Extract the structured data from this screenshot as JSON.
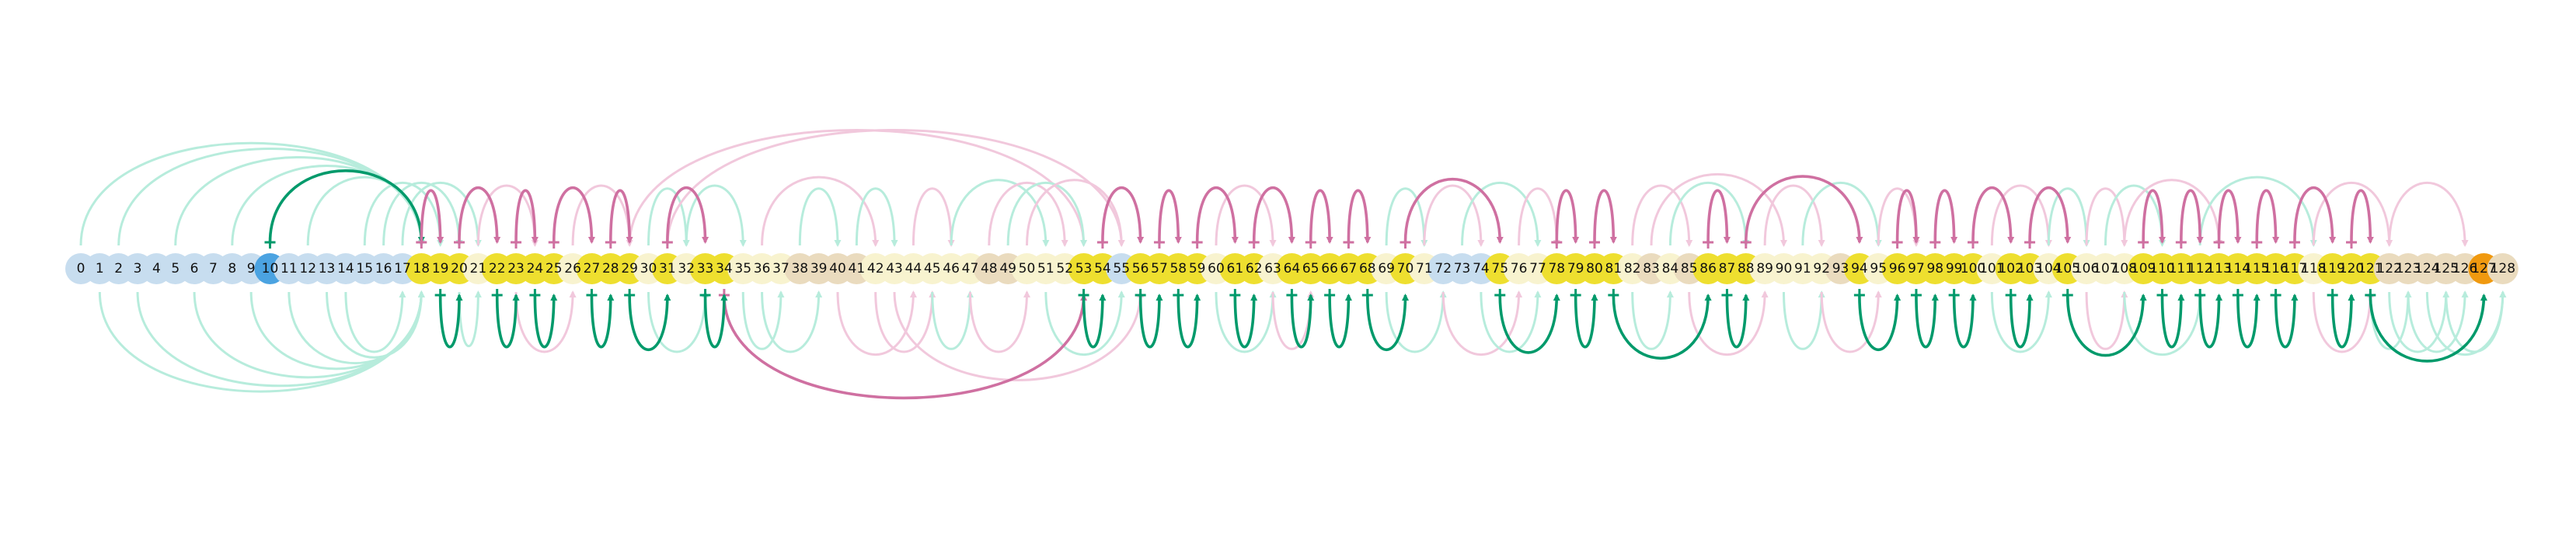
{
  "node_labels": [
    "0",
    "1",
    "2",
    "3",
    "4",
    "5",
    "6",
    "7",
    "8",
    "9",
    "10",
    "11",
    "12",
    "13",
    "14",
    "15",
    "16",
    "17",
    "18",
    "19",
    "20",
    "21",
    "22",
    "23",
    "24",
    "25",
    "26",
    "27",
    "28",
    "29",
    "30",
    "31",
    "32",
    "33",
    "34",
    "35",
    "36",
    "37",
    "38",
    "39",
    "40",
    "41",
    "42",
    "43",
    "44",
    "45",
    "46",
    "47",
    "48",
    "49",
    "50",
    "51",
    "52",
    "53",
    "54",
    "55",
    "56",
    "57",
    "58",
    "59",
    "60",
    "61",
    "62",
    "63",
    "64",
    "65",
    "66",
    "67",
    "68",
    "69",
    "70",
    "71",
    "72",
    "73",
    "74",
    "75",
    "76",
    "77",
    "78",
    "79",
    "80",
    "81",
    "82",
    "83",
    "84",
    "85",
    "86",
    "87",
    "88",
    "89",
    "90",
    "91",
    "92",
    "93",
    "94",
    "95",
    "96",
    "97",
    "98",
    "99",
    "100",
    "101",
    "102",
    "103",
    "104",
    "105",
    "106",
    "107",
    "108",
    "109",
    "110",
    "111",
    "112",
    "113",
    "114",
    "115",
    "116",
    "117",
    "118",
    "119",
    "120",
    "121",
    "122",
    "123",
    "124",
    "125",
    "126",
    "127",
    "128"
  ],
  "colors": {
    "default": "#c7ddef",
    "source": "#4ba3e1",
    "active": "#eedf2f",
    "pale": "#f8f3cf",
    "tan": "#eadbbe",
    "orange": "#f0990f",
    "green": "#009a6b",
    "green_faint": "#b7ecdc",
    "pink": "#cf70a1",
    "pink_faint": "#f1c8dc"
  },
  "node_state": {
    "source": [
      10
    ],
    "active": [
      18,
      19,
      20,
      22,
      23,
      24,
      25,
      27,
      28,
      29,
      31,
      33,
      34,
      53,
      54,
      56,
      57,
      58,
      59,
      61,
      62,
      64,
      65,
      66,
      67,
      68,
      70,
      75,
      78,
      79,
      80,
      81,
      86,
      87,
      88,
      94,
      96,
      97,
      98,
      99,
      100,
      102,
      103,
      105,
      109,
      110,
      111,
      112,
      113,
      114,
      115,
      116,
      117,
      119,
      120,
      121
    ],
    "pale": [
      21,
      26,
      30,
      32,
      35,
      36,
      37,
      42,
      43,
      44,
      45,
      46,
      47,
      50,
      51,
      52,
      60,
      63,
      69,
      71,
      76,
      77,
      82,
      84,
      89,
      90,
      91,
      92,
      95,
      101,
      104,
      106,
      107,
      108,
      118
    ],
    "tan": [
      38,
      39,
      40,
      41,
      48,
      49,
      83,
      85,
      93,
      122,
      123,
      124,
      125,
      126,
      128
    ],
    "orange": [
      127
    ]
  },
  "arcs_strong": [
    {
      "from": 10,
      "to": 18,
      "side": "above",
      "color": "green"
    },
    {
      "from": 18,
      "to": 19,
      "side": "above",
      "color": "pink"
    },
    {
      "from": 20,
      "to": 22,
      "side": "above",
      "color": "pink"
    },
    {
      "from": 23,
      "to": 24,
      "side": "above",
      "color": "pink"
    },
    {
      "from": 25,
      "to": 27,
      "side": "above",
      "color": "pink"
    },
    {
      "from": 28,
      "to": 29,
      "side": "above",
      "color": "pink"
    },
    {
      "from": 31,
      "to": 33,
      "side": "above",
      "color": "pink"
    },
    {
      "from": 54,
      "to": 56,
      "side": "above",
      "color": "pink"
    },
    {
      "from": 57,
      "to": 58,
      "side": "above",
      "color": "pink"
    },
    {
      "from": 59,
      "to": 61,
      "side": "above",
      "color": "pink"
    },
    {
      "from": 62,
      "to": 64,
      "side": "above",
      "color": "pink"
    },
    {
      "from": 65,
      "to": 66,
      "side": "above",
      "color": "pink"
    },
    {
      "from": 67,
      "to": 68,
      "side": "above",
      "color": "pink"
    },
    {
      "from": 70,
      "to": 75,
      "side": "above",
      "color": "pink"
    },
    {
      "from": 78,
      "to": 79,
      "side": "above",
      "color": "pink"
    },
    {
      "from": 80,
      "to": 81,
      "side": "above",
      "color": "pink"
    },
    {
      "from": 86,
      "to": 87,
      "side": "above",
      "color": "pink"
    },
    {
      "from": 88,
      "to": 94,
      "side": "above",
      "color": "pink"
    },
    {
      "from": 96,
      "to": 97,
      "side": "above",
      "color": "pink"
    },
    {
      "from": 98,
      "to": 99,
      "side": "above",
      "color": "pink"
    },
    {
      "from": 100,
      "to": 102,
      "side": "above",
      "color": "pink"
    },
    {
      "from": 103,
      "to": 105,
      "side": "above",
      "color": "pink"
    },
    {
      "from": 109,
      "to": 110,
      "side": "above",
      "color": "pink"
    },
    {
      "from": 111,
      "to": 112,
      "side": "above",
      "color": "pink"
    },
    {
      "from": 113,
      "to": 114,
      "side": "above",
      "color": "pink"
    },
    {
      "from": 115,
      "to": 116,
      "side": "above",
      "color": "pink"
    },
    {
      "from": 117,
      "to": 119,
      "side": "above",
      "color": "pink"
    },
    {
      "from": 120,
      "to": 121,
      "side": "above",
      "color": "pink"
    },
    {
      "from": 34,
      "to": 53,
      "side": "below",
      "color": "pink"
    },
    {
      "from": 19,
      "to": 20,
      "side": "below",
      "color": "green"
    },
    {
      "from": 22,
      "to": 23,
      "side": "below",
      "color": "green"
    },
    {
      "from": 24,
      "to": 25,
      "side": "below",
      "color": "green"
    },
    {
      "from": 27,
      "to": 28,
      "side": "below",
      "color": "green"
    },
    {
      "from": 29,
      "to": 31,
      "side": "below",
      "color": "green"
    },
    {
      "from": 33,
      "to": 34,
      "side": "below",
      "color": "green"
    },
    {
      "from": 53,
      "to": 54,
      "side": "below",
      "color": "green"
    },
    {
      "from": 56,
      "to": 57,
      "side": "below",
      "color": "green"
    },
    {
      "from": 58,
      "to": 59,
      "side": "below",
      "color": "green"
    },
    {
      "from": 61,
      "to": 62,
      "side": "below",
      "color": "green"
    },
    {
      "from": 64,
      "to": 65,
      "side": "below",
      "color": "green"
    },
    {
      "from": 66,
      "to": 67,
      "side": "below",
      "color": "green"
    },
    {
      "from": 68,
      "to": 70,
      "side": "below",
      "color": "green"
    },
    {
      "from": 75,
      "to": 78,
      "side": "below",
      "color": "green"
    },
    {
      "from": 79,
      "to": 80,
      "side": "below",
      "color": "green"
    },
    {
      "from": 81,
      "to": 86,
      "side": "below",
      "color": "green"
    },
    {
      "from": 87,
      "to": 88,
      "side": "below",
      "color": "green"
    },
    {
      "from": 94,
      "to": 96,
      "side": "below",
      "color": "green"
    },
    {
      "from": 97,
      "to": 98,
      "side": "below",
      "color": "green"
    },
    {
      "from": 99,
      "to": 100,
      "side": "below",
      "color": "green"
    },
    {
      "from": 102,
      "to": 103,
      "side": "below",
      "color": "green"
    },
    {
      "from": 105,
      "to": 109,
      "side": "below",
      "color": "green"
    },
    {
      "from": 110,
      "to": 111,
      "side": "below",
      "color": "green"
    },
    {
      "from": 112,
      "to": 113,
      "side": "below",
      "color": "green"
    },
    {
      "from": 114,
      "to": 115,
      "side": "below",
      "color": "green"
    },
    {
      "from": 116,
      "to": 117,
      "side": "below",
      "color": "green"
    },
    {
      "from": 119,
      "to": 120,
      "side": "below",
      "color": "green"
    },
    {
      "from": 121,
      "to": 127,
      "side": "below",
      "color": "green"
    }
  ],
  "arcs_faint": [
    {
      "from": 0,
      "to": 18,
      "side": "above",
      "color": "green_faint"
    },
    {
      "from": 2,
      "to": 18,
      "side": "above",
      "color": "green_faint"
    },
    {
      "from": 5,
      "to": 18,
      "side": "above",
      "color": "green_faint"
    },
    {
      "from": 8,
      "to": 18,
      "side": "above",
      "color": "green_faint"
    },
    {
      "from": 12,
      "to": 18,
      "side": "above",
      "color": "green_faint"
    },
    {
      "from": 15,
      "to": 19,
      "side": "above",
      "color": "green_faint"
    },
    {
      "from": 16,
      "to": 20,
      "side": "above",
      "color": "green_faint"
    },
    {
      "from": 17,
      "to": 21,
      "side": "above",
      "color": "green_faint"
    },
    {
      "from": 21,
      "to": 24,
      "side": "above",
      "color": "pink_faint"
    },
    {
      "from": 26,
      "to": 29,
      "side": "above",
      "color": "pink_faint"
    },
    {
      "from": 30,
      "to": 32,
      "side": "above",
      "color": "green_faint"
    },
    {
      "from": 32,
      "to": 35,
      "side": "above",
      "color": "green_faint"
    },
    {
      "from": 29,
      "to": 53,
      "side": "above",
      "color": "pink_faint"
    },
    {
      "from": 31,
      "to": 55,
      "side": "above",
      "color": "pink_faint"
    },
    {
      "from": 36,
      "to": 42,
      "side": "above",
      "color": "pink_faint"
    },
    {
      "from": 38,
      "to": 40,
      "side": "above",
      "color": "green_faint"
    },
    {
      "from": 41,
      "to": 43,
      "side": "above",
      "color": "green_faint"
    },
    {
      "from": 44,
      "to": 46,
      "side": "above",
      "color": "pink_faint"
    },
    {
      "from": 46,
      "to": 51,
      "side": "above",
      "color": "green_faint"
    },
    {
      "from": 48,
      "to": 52,
      "side": "above",
      "color": "pink_faint"
    },
    {
      "from": 49,
      "to": 53,
      "side": "above",
      "color": "green_faint"
    },
    {
      "from": 50,
      "to": 55,
      "side": "above",
      "color": "pink_faint"
    },
    {
      "from": 60,
      "to": 63,
      "side": "above",
      "color": "pink_faint"
    },
    {
      "from": 69,
      "to": 71,
      "side": "above",
      "color": "green_faint"
    },
    {
      "from": 71,
      "to": 74,
      "side": "above",
      "color": "pink_faint"
    },
    {
      "from": 73,
      "to": 77,
      "side": "above",
      "color": "green_faint"
    },
    {
      "from": 76,
      "to": 78,
      "side": "above",
      "color": "pink_faint"
    },
    {
      "from": 82,
      "to": 85,
      "side": "above",
      "color": "pink_faint"
    },
    {
      "from": 83,
      "to": 90,
      "side": "above",
      "color": "pink_faint"
    },
    {
      "from": 84,
      "to": 88,
      "side": "above",
      "color": "green_faint"
    },
    {
      "from": 89,
      "to": 92,
      "side": "above",
      "color": "pink_faint"
    },
    {
      "from": 91,
      "to": 95,
      "side": "above",
      "color": "green_faint"
    },
    {
      "from": 95,
      "to": 97,
      "side": "above",
      "color": "pink_faint"
    },
    {
      "from": 101,
      "to": 104,
      "side": "above",
      "color": "pink_faint"
    },
    {
      "from": 104,
      "to": 106,
      "side": "above",
      "color": "green_faint"
    },
    {
      "from": 106,
      "to": 108,
      "side": "above",
      "color": "pink_faint"
    },
    {
      "from": 107,
      "to": 110,
      "side": "above",
      "color": "green_faint"
    },
    {
      "from": 108,
      "to": 113,
      "side": "above",
      "color": "pink_faint"
    },
    {
      "from": 112,
      "to": 118,
      "side": "above",
      "color": "green_faint"
    },
    {
      "from": 118,
      "to": 122,
      "side": "above",
      "color": "pink_faint"
    },
    {
      "from": 122,
      "to": 126,
      "side": "above",
      "color": "pink_faint"
    },
    {
      "from": 1,
      "to": 18,
      "side": "below",
      "color": "green_faint"
    },
    {
      "from": 3,
      "to": 18,
      "side": "below",
      "color": "green_faint"
    },
    {
      "from": 6,
      "to": 18,
      "side": "below",
      "color": "green_faint"
    },
    {
      "from": 9,
      "to": 18,
      "side": "below",
      "color": "green_faint"
    },
    {
      "from": 11,
      "to": 18,
      "side": "below",
      "color": "green_faint"
    },
    {
      "from": 13,
      "to": 18,
      "side": "below",
      "color": "green_faint"
    },
    {
      "from": 14,
      "to": 17,
      "side": "below",
      "color": "green_faint"
    },
    {
      "from": 20,
      "to": 21,
      "side": "below",
      "color": "green_faint"
    },
    {
      "from": 23,
      "to": 26,
      "side": "below",
      "color": "pink_faint"
    },
    {
      "from": 30,
      "to": 33,
      "side": "below",
      "color": "green_faint"
    },
    {
      "from": 35,
      "to": 37,
      "side": "below",
      "color": "green_faint"
    },
    {
      "from": 36,
      "to": 39,
      "side": "below",
      "color": "green_faint"
    },
    {
      "from": 40,
      "to": 44,
      "side": "below",
      "color": "pink_faint"
    },
    {
      "from": 42,
      "to": 45,
      "side": "below",
      "color": "pink_faint"
    },
    {
      "from": 45,
      "to": 47,
      "side": "below",
      "color": "green_faint"
    },
    {
      "from": 47,
      "to": 50,
      "side": "below",
      "color": "pink_faint"
    },
    {
      "from": 51,
      "to": 55,
      "side": "below",
      "color": "green_faint"
    },
    {
      "from": 43,
      "to": 56,
      "side": "below",
      "color": "pink_faint"
    },
    {
      "from": 60,
      "to": 63,
      "side": "below",
      "color": "green_faint"
    },
    {
      "from": 63,
      "to": 65,
      "side": "below",
      "color": "pink_faint"
    },
    {
      "from": 69,
      "to": 72,
      "side": "below",
      "color": "green_faint"
    },
    {
      "from": 72,
      "to": 76,
      "side": "below",
      "color": "pink_faint"
    },
    {
      "from": 74,
      "to": 77,
      "side": "below",
      "color": "green_faint"
    },
    {
      "from": 82,
      "to": 84,
      "side": "below",
      "color": "green_faint"
    },
    {
      "from": 85,
      "to": 89,
      "side": "below",
      "color": "pink_faint"
    },
    {
      "from": 90,
      "to": 92,
      "side": "below",
      "color": "green_faint"
    },
    {
      "from": 92,
      "to": 95,
      "side": "below",
      "color": "pink_faint"
    },
    {
      "from": 101,
      "to": 104,
      "side": "below",
      "color": "green_faint"
    },
    {
      "from": 106,
      "to": 108,
      "side": "below",
      "color": "pink_faint"
    },
    {
      "from": 108,
      "to": 112,
      "side": "below",
      "color": "green_faint"
    },
    {
      "from": 118,
      "to": 121,
      "side": "below",
      "color": "pink_faint"
    },
    {
      "from": 121,
      "to": 123,
      "side": "below",
      "color": "green_faint"
    },
    {
      "from": 122,
      "to": 125,
      "side": "below",
      "color": "green_faint"
    },
    {
      "from": 123,
      "to": 126,
      "side": "below",
      "color": "green_faint"
    },
    {
      "from": 124,
      "to": 128,
      "side": "below",
      "color": "green_faint"
    },
    {
      "from": 125,
      "to": 128,
      "side": "below",
      "color": "green_faint"
    }
  ]
}
